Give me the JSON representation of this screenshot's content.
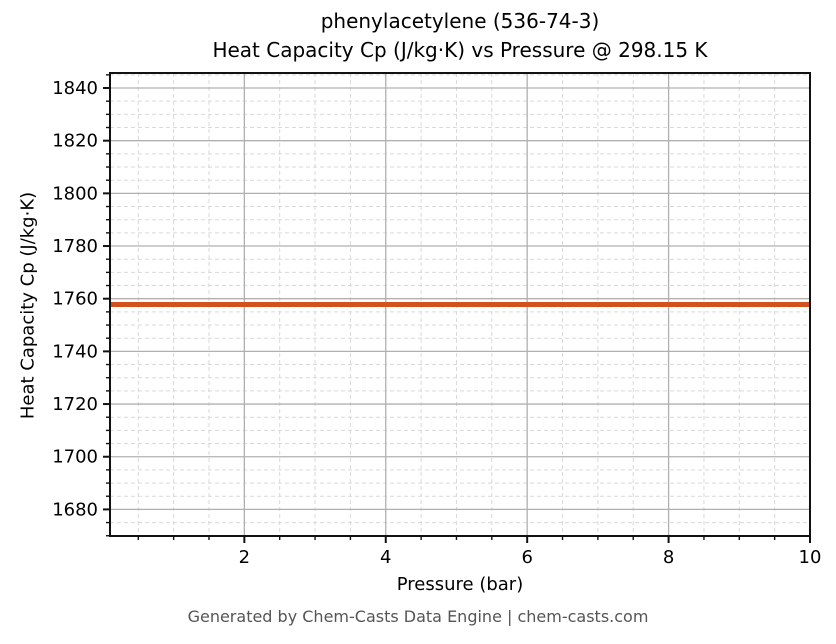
{
  "title": {
    "line1": "phenylacetylene (536-74-3)",
    "line2": "Heat Capacity Cp (J/kg·K) vs Pressure @ 298.15 K"
  },
  "footer": {
    "text": "Generated by Chem-Casts Data Engine | chem-casts.com"
  },
  "chart_data": {
    "type": "line",
    "title": "phenylacetylene (536-74-3)\nHeat Capacity Cp (J/kg·K) vs Pressure @ 298.15 K",
    "xlabel": "Pressure (bar)",
    "ylabel": "Heat Capacity Cp (J/kg·K)",
    "substance": "phenylacetylene",
    "cas_number": "536-74-3",
    "temperature_label": "298.15 K",
    "xlim": [
      0.1,
      10
    ],
    "ylim": [
      1669.9,
      1845.7
    ],
    "xticks": [
      2,
      4,
      6,
      8,
      10
    ],
    "xtick_labels": [
      "2",
      "4",
      "6",
      "8",
      "10"
    ],
    "yticks": [
      1680,
      1700,
      1720,
      1740,
      1760,
      1780,
      1800,
      1820,
      1840
    ],
    "ytick_labels": [
      "1680",
      "1700",
      "1720",
      "1740",
      "1760",
      "1780",
      "1800",
      "1820",
      "1840"
    ],
    "x_minor_step": 0.5,
    "y_minor_step": 5,
    "grid": true,
    "legend": "none",
    "series": [
      {
        "name": "Heat Capacity Cp",
        "color": "#d1521d",
        "x": [
          0.1,
          2,
          4,
          6,
          8,
          10
        ],
        "y": [
          1757.8,
          1757.8,
          1757.8,
          1757.8,
          1757.8,
          1757.8
        ]
      }
    ],
    "line_value": 1757.8,
    "colors": {
      "line": "#d1521d",
      "grid_major": "#b0b0b0",
      "grid_minor": "#d9d9d9",
      "spine": "#111111",
      "tick": "#111111",
      "footer_text": "#555555"
    }
  }
}
